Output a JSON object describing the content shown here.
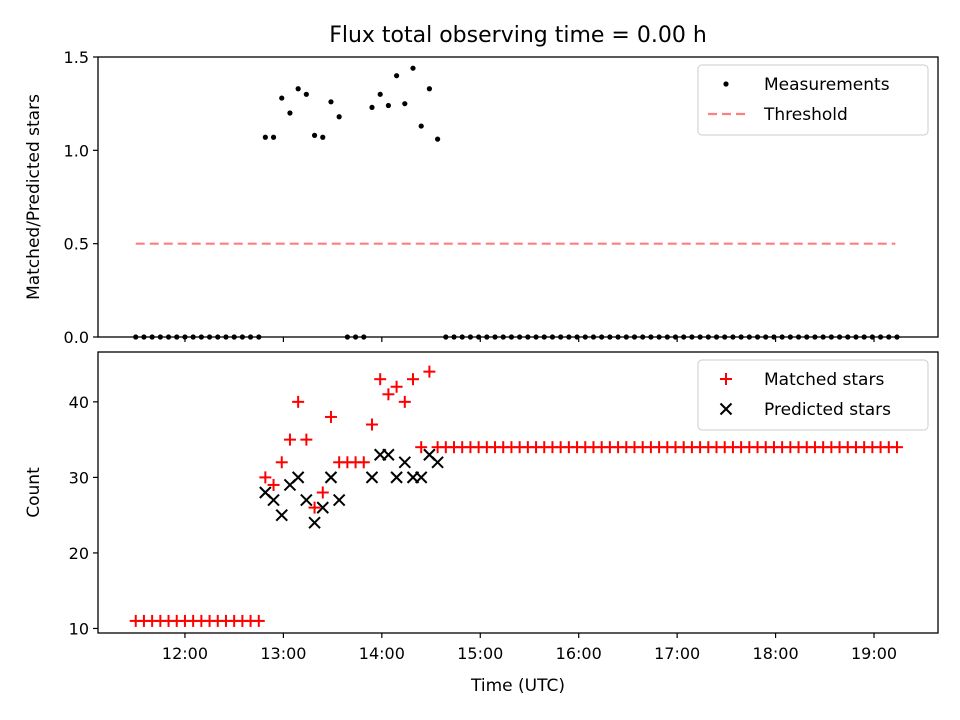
{
  "figure_title": "Flux total observing time = 0.00 h",
  "chart_data": [
    {
      "type": "scatter",
      "title": "Flux total observing time = 0.00 h",
      "xlabel": "",
      "ylabel": "Matched/Predicted stars",
      "xlim": [
        "11:07",
        "19:39"
      ],
      "ylim": [
        0,
        1.5
      ],
      "yticks": [
        "0.0",
        "0.5",
        "1.0",
        "1.5"
      ],
      "legend_position": "top-right",
      "grid": false,
      "series": [
        {
          "name": "Measurements",
          "marker": "dot",
          "color": "#000000",
          "points": [
            [
              "11:30",
              0
            ],
            [
              "11:35",
              0
            ],
            [
              "11:40",
              0
            ],
            [
              "11:45",
              0
            ],
            [
              "11:50",
              0
            ],
            [
              "11:55",
              0
            ],
            [
              "12:00",
              0
            ],
            [
              "12:05",
              0
            ],
            [
              "12:10",
              0
            ],
            [
              "12:15",
              0
            ],
            [
              "12:20",
              0
            ],
            [
              "12:25",
              0
            ],
            [
              "12:30",
              0
            ],
            [
              "12:35",
              0
            ],
            [
              "12:40",
              0
            ],
            [
              "12:45",
              0
            ],
            [
              "12:49",
              1.07
            ],
            [
              "12:54",
              1.07
            ],
            [
              "12:59",
              1.28
            ],
            [
              "13:04",
              1.2
            ],
            [
              "13:09",
              1.33
            ],
            [
              "13:14",
              1.3
            ],
            [
              "13:19",
              1.08
            ],
            [
              "13:24",
              1.07
            ],
            [
              "13:29",
              1.26
            ],
            [
              "13:34",
              1.18
            ],
            [
              "13:39",
              0
            ],
            [
              "13:44",
              0
            ],
            [
              "13:49",
              0
            ],
            [
              "13:54",
              1.23
            ],
            [
              "13:59",
              1.3
            ],
            [
              "14:04",
              1.24
            ],
            [
              "14:09",
              1.4
            ],
            [
              "14:14",
              1.25
            ],
            [
              "14:19",
              1.44
            ],
            [
              "14:24",
              1.13
            ],
            [
              "14:29",
              1.33
            ],
            [
              "14:34",
              1.06
            ],
            [
              "14:39",
              0
            ],
            [
              "14:44",
              0
            ],
            [
              "14:49",
              0
            ],
            [
              "14:54",
              0
            ],
            [
              "14:59",
              0
            ],
            [
              "15:04",
              0
            ],
            [
              "15:09",
              0
            ],
            [
              "15:14",
              0
            ],
            [
              "15:19",
              0
            ],
            [
              "15:24",
              0
            ],
            [
              "15:29",
              0
            ],
            [
              "15:34",
              0
            ],
            [
              "15:39",
              0
            ],
            [
              "15:44",
              0
            ],
            [
              "15:49",
              0
            ],
            [
              "15:54",
              0
            ],
            [
              "15:59",
              0
            ],
            [
              "16:04",
              0
            ],
            [
              "16:09",
              0
            ],
            [
              "16:14",
              0
            ],
            [
              "16:19",
              0
            ],
            [
              "16:24",
              0
            ],
            [
              "16:29",
              0
            ],
            [
              "16:34",
              0
            ],
            [
              "16:39",
              0
            ],
            [
              "16:44",
              0
            ],
            [
              "16:49",
              0
            ],
            [
              "16:54",
              0
            ],
            [
              "16:59",
              0
            ],
            [
              "17:04",
              0
            ],
            [
              "17:09",
              0
            ],
            [
              "17:14",
              0
            ],
            [
              "17:19",
              0
            ],
            [
              "17:24",
              0
            ],
            [
              "17:29",
              0
            ],
            [
              "17:34",
              0
            ],
            [
              "17:39",
              0
            ],
            [
              "17:44",
              0
            ],
            [
              "17:49",
              0
            ],
            [
              "17:54",
              0
            ],
            [
              "17:59",
              0
            ],
            [
              "18:04",
              0
            ],
            [
              "18:09",
              0
            ],
            [
              "18:14",
              0
            ],
            [
              "18:19",
              0
            ],
            [
              "18:24",
              0
            ],
            [
              "18:29",
              0
            ],
            [
              "18:34",
              0
            ],
            [
              "18:39",
              0
            ],
            [
              "18:44",
              0
            ],
            [
              "18:49",
              0
            ],
            [
              "18:54",
              0
            ],
            [
              "18:59",
              0
            ],
            [
              "19:04",
              0
            ],
            [
              "19:09",
              0
            ],
            [
              "19:14",
              0
            ]
          ]
        },
        {
          "name": "Threshold",
          "marker": "dashed-line",
          "color": "#ff7f7f",
          "points": [
            [
              "11:30",
              0.5
            ],
            [
              "19:13",
              0.5
            ]
          ]
        }
      ]
    },
    {
      "type": "scatter",
      "title": "",
      "xlabel": "Time (UTC)",
      "ylabel": "Count",
      "xlim": [
        "11:07",
        "19:39"
      ],
      "ylim": [
        9.4,
        46.6
      ],
      "yticks": [
        "10",
        "20",
        "30",
        "40"
      ],
      "xticks": [
        "12:00",
        "13:00",
        "14:00",
        "15:00",
        "16:00",
        "17:00",
        "18:00",
        "19:00"
      ],
      "legend_position": "top-right",
      "grid": false,
      "series": [
        {
          "name": "Matched stars",
          "marker": "plus",
          "color": "#ff0000",
          "points": [
            [
              "11:30",
              11
            ],
            [
              "11:35",
              11
            ],
            [
              "11:40",
              11
            ],
            [
              "11:45",
              11
            ],
            [
              "11:50",
              11
            ],
            [
              "11:55",
              11
            ],
            [
              "12:00",
              11
            ],
            [
              "12:05",
              11
            ],
            [
              "12:10",
              11
            ],
            [
              "12:15",
              11
            ],
            [
              "12:20",
              11
            ],
            [
              "12:25",
              11
            ],
            [
              "12:30",
              11
            ],
            [
              "12:35",
              11
            ],
            [
              "12:40",
              11
            ],
            [
              "12:45",
              11
            ],
            [
              "12:49",
              30
            ],
            [
              "12:54",
              29
            ],
            [
              "12:59",
              32
            ],
            [
              "13:04",
              35
            ],
            [
              "13:09",
              40
            ],
            [
              "13:14",
              35
            ],
            [
              "13:19",
              26
            ],
            [
              "13:24",
              28
            ],
            [
              "13:29",
              38
            ],
            [
              "13:34",
              32
            ],
            [
              "13:39",
              32
            ],
            [
              "13:44",
              32
            ],
            [
              "13:49",
              32
            ],
            [
              "13:54",
              37
            ],
            [
              "13:59",
              43
            ],
            [
              "14:04",
              41
            ],
            [
              "14:09",
              42
            ],
            [
              "14:14",
              40
            ],
            [
              "14:19",
              43
            ],
            [
              "14:24",
              34
            ],
            [
              "14:29",
              44
            ],
            [
              "14:34",
              34
            ],
            [
              "14:39",
              34
            ],
            [
              "14:44",
              34
            ],
            [
              "14:49",
              34
            ],
            [
              "14:54",
              34
            ],
            [
              "14:59",
              34
            ],
            [
              "15:04",
              34
            ],
            [
              "15:09",
              34
            ],
            [
              "15:14",
              34
            ],
            [
              "15:19",
              34
            ],
            [
              "15:24",
              34
            ],
            [
              "15:29",
              34
            ],
            [
              "15:34",
              34
            ],
            [
              "15:39",
              34
            ],
            [
              "15:44",
              34
            ],
            [
              "15:49",
              34
            ],
            [
              "15:54",
              34
            ],
            [
              "15:59",
              34
            ],
            [
              "16:04",
              34
            ],
            [
              "16:09",
              34
            ],
            [
              "16:14",
              34
            ],
            [
              "16:19",
              34
            ],
            [
              "16:24",
              34
            ],
            [
              "16:29",
              34
            ],
            [
              "16:34",
              34
            ],
            [
              "16:39",
              34
            ],
            [
              "16:44",
              34
            ],
            [
              "16:49",
              34
            ],
            [
              "16:54",
              34
            ],
            [
              "16:59",
              34
            ],
            [
              "17:04",
              34
            ],
            [
              "17:09",
              34
            ],
            [
              "17:14",
              34
            ],
            [
              "17:19",
              34
            ],
            [
              "17:24",
              34
            ],
            [
              "17:29",
              34
            ],
            [
              "17:34",
              34
            ],
            [
              "17:39",
              34
            ],
            [
              "17:44",
              34
            ],
            [
              "17:49",
              34
            ],
            [
              "17:54",
              34
            ],
            [
              "17:59",
              34
            ],
            [
              "18:04",
              34
            ],
            [
              "18:09",
              34
            ],
            [
              "18:14",
              34
            ],
            [
              "18:19",
              34
            ],
            [
              "18:24",
              34
            ],
            [
              "18:29",
              34
            ],
            [
              "18:34",
              34
            ],
            [
              "18:39",
              34
            ],
            [
              "18:44",
              34
            ],
            [
              "18:49",
              34
            ],
            [
              "18:54",
              34
            ],
            [
              "18:59",
              34
            ],
            [
              "19:04",
              34
            ],
            [
              "19:09",
              34
            ],
            [
              "19:14",
              34
            ]
          ]
        },
        {
          "name": "Predicted stars",
          "marker": "x",
          "color": "#000000",
          "points": [
            [
              "12:49",
              28
            ],
            [
              "12:54",
              27
            ],
            [
              "12:59",
              25
            ],
            [
              "13:04",
              29
            ],
            [
              "13:09",
              30
            ],
            [
              "13:14",
              27
            ],
            [
              "13:19",
              24
            ],
            [
              "13:24",
              26
            ],
            [
              "13:29",
              30
            ],
            [
              "13:34",
              27
            ],
            [
              "13:54",
              30
            ],
            [
              "13:59",
              33
            ],
            [
              "14:04",
              33
            ],
            [
              "14:09",
              30
            ],
            [
              "14:14",
              32
            ],
            [
              "14:19",
              30
            ],
            [
              "14:24",
              30
            ],
            [
              "14:29",
              33
            ],
            [
              "14:34",
              32
            ]
          ]
        }
      ]
    }
  ]
}
